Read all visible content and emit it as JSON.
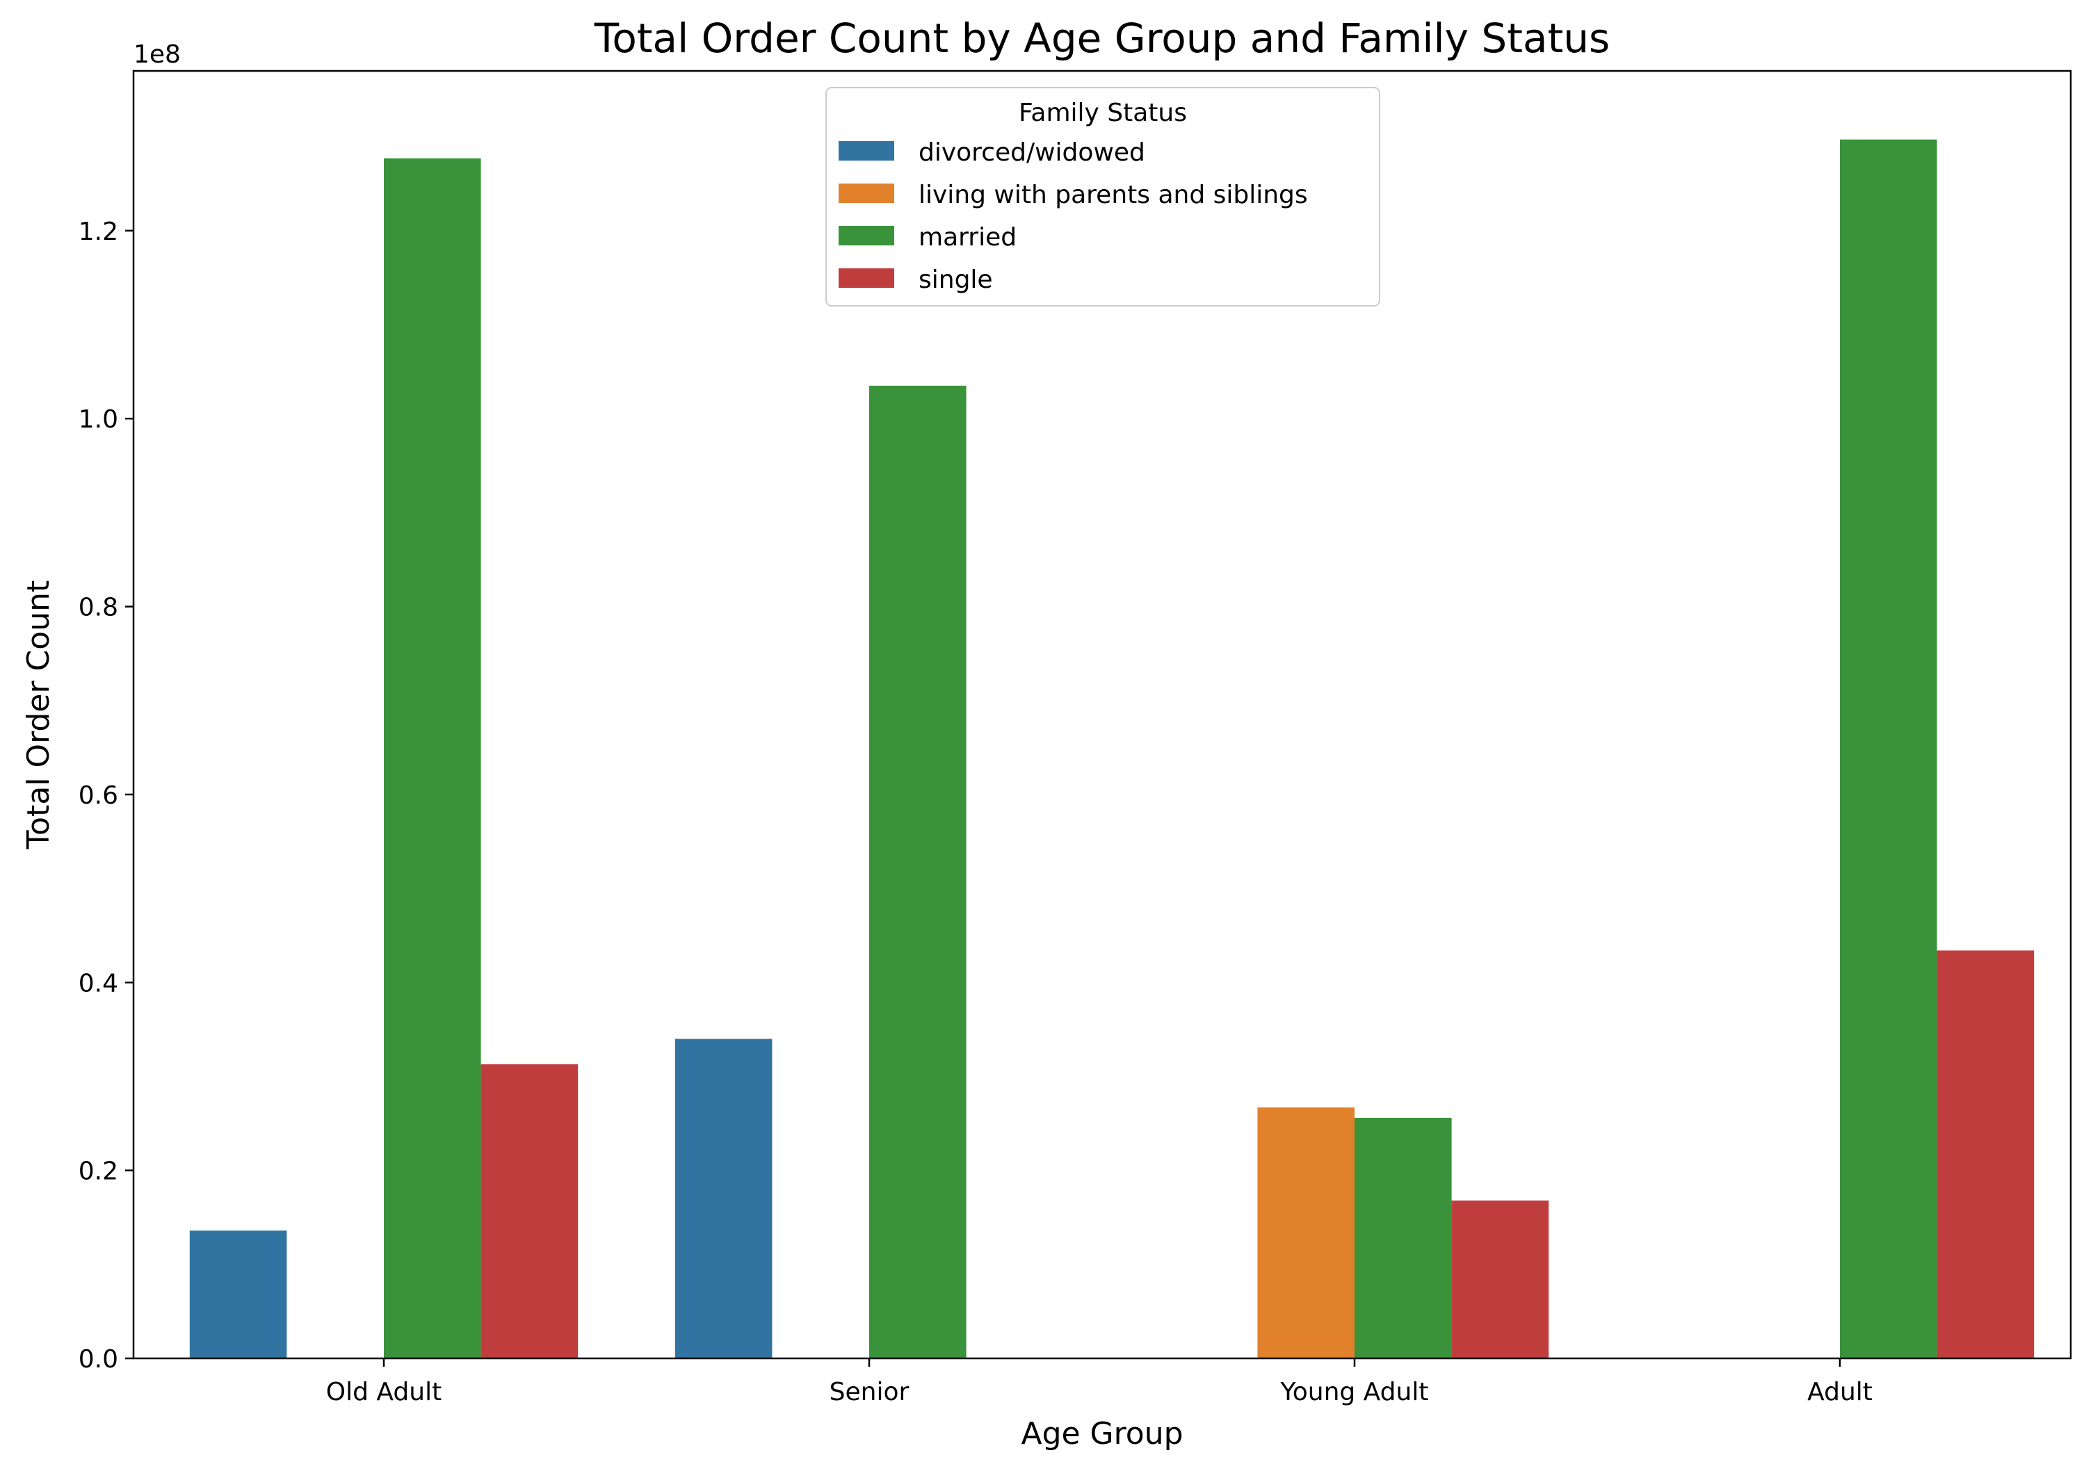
{
  "chart_data": {
    "type": "bar",
    "title": "Total Order Count by Age Group and Family Status",
    "xlabel": "Age Group",
    "ylabel": "Total Order Count",
    "offset_label": "1e8",
    "categories": [
      "Old Adult",
      "Senior",
      "Young Adult",
      "Adult"
    ],
    "ylim": [
      0,
      1.37
    ],
    "yticks": [
      0.0,
      0.2,
      0.4,
      0.6,
      0.8,
      1.0,
      1.2
    ],
    "ytick_labels": [
      "0.0",
      "0.2",
      "0.4",
      "0.6",
      "0.8",
      "1.0",
      "1.2"
    ],
    "grid": false,
    "legend": {
      "title": "Family Status",
      "placement": "top-center"
    },
    "series": [
      {
        "name": "divorced/widowed",
        "color": "#3274a1",
        "values": [
          0.136,
          0.34,
          null,
          null
        ]
      },
      {
        "name": "living with parents and siblings",
        "color": "#e1812c",
        "values": [
          null,
          null,
          0.267,
          null
        ]
      },
      {
        "name": "married",
        "color": "#3a923a",
        "values": [
          1.277,
          1.035,
          0.256,
          1.297
        ]
      },
      {
        "name": "single",
        "color": "#c03d3e",
        "values": [
          0.313,
          null,
          0.168,
          0.434
        ]
      }
    ]
  }
}
